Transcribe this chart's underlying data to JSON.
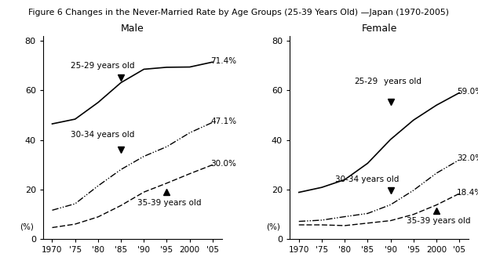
{
  "title": "Figure 6 Changes in the Never-Married Rate by Age Groups (25-39 Years Old) —Japan (1970-2005)",
  "years": [
    1970,
    1975,
    1980,
    1985,
    1990,
    1995,
    2000,
    2005
  ],
  "male": {
    "label": "Male",
    "age25_29": [
      46.5,
      48.4,
      55.1,
      63.1,
      68.5,
      69.3,
      69.4,
      71.4
    ],
    "age30_34": [
      11.7,
      14.3,
      21.5,
      28.1,
      33.4,
      37.3,
      42.9,
      47.1
    ],
    "age35_39": [
      4.7,
      6.1,
      9.0,
      13.6,
      19.0,
      22.6,
      26.4,
      30.0
    ],
    "end25": "71.4%",
    "end30": "47.1%",
    "end35": "30.0%",
    "marker25_x": 1985,
    "marker25_y": 65.0,
    "marker30_x": 1985,
    "marker30_y": 36.0,
    "marker35_x": 1995,
    "marker35_y": 19.0
  },
  "female": {
    "label": "Female",
    "age25_29": [
      18.9,
      20.9,
      24.0,
      30.6,
      40.2,
      48.0,
      54.0,
      59.0
    ],
    "age30_34": [
      7.2,
      7.7,
      9.1,
      10.4,
      13.9,
      19.7,
      26.6,
      32.0
    ],
    "age35_39": [
      5.8,
      5.8,
      5.5,
      6.5,
      7.5,
      10.0,
      13.8,
      18.4
    ],
    "end25": "59.0%",
    "end30": "32.0%",
    "end35": "18.4%",
    "marker25_x": 1990,
    "marker25_y": 55.5,
    "marker30_x": 1990,
    "marker30_y": 19.7,
    "marker35_x": 2000,
    "marker35_y": 11.5
  },
  "xlim": [
    1968,
    2007
  ],
  "ylim": [
    0,
    82
  ],
  "yticks": [
    0,
    20,
    40,
    60,
    80
  ],
  "xtick_labels": [
    "1970",
    "'75",
    "'80",
    "'85",
    "'90",
    "'95",
    "2000",
    "'05"
  ],
  "xtick_vals": [
    1970,
    1975,
    1980,
    1985,
    1990,
    1995,
    2000,
    2005
  ],
  "background_color": "#ffffff"
}
